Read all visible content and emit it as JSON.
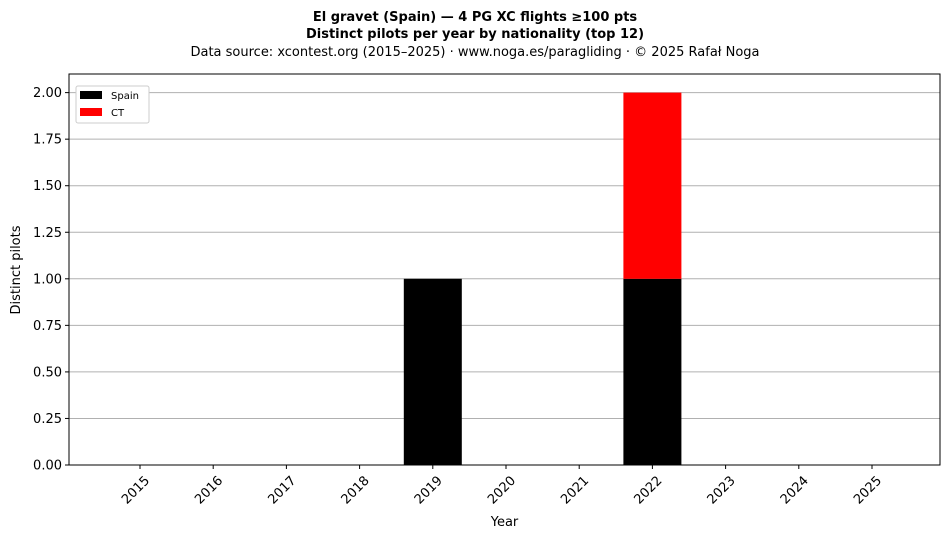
{
  "chart_data": {
    "type": "bar",
    "stacked": true,
    "title_line1": "El gravet (Spain)  —  4 PG XC flights ≥100 pts",
    "title_line2": "Distinct pilots per year by nationality (top 12)",
    "subtitle": "Data source: xcontest.org (2015–2025)  ·  www.noga.es/paragliding  ·  © 2025 Rafał Noga",
    "xlabel": "Year",
    "ylabel": "Distinct pilots",
    "ylim": [
      0,
      2.1
    ],
    "yticks": [
      "0.00",
      "0.25",
      "0.50",
      "0.75",
      "1.00",
      "1.25",
      "1.50",
      "1.75",
      "2.00"
    ],
    "ytick_values": [
      0,
      0.25,
      0.5,
      0.75,
      1.0,
      1.25,
      1.5,
      1.75,
      2.0
    ],
    "grid": "y",
    "legend_position": "top-left",
    "categories": [
      "2015",
      "2016",
      "2017",
      "2018",
      "2019",
      "2020",
      "2021",
      "2022",
      "2023",
      "2024",
      "2025"
    ],
    "series": [
      {
        "name": "Spain",
        "color": "#000000",
        "values": [
          0,
          0,
          0,
          0,
          1,
          0,
          0,
          1,
          0,
          0,
          0
        ]
      },
      {
        "name": "CT",
        "color": "#ff0000",
        "values": [
          0,
          0,
          0,
          0,
          0,
          0,
          0,
          1,
          0,
          0,
          0
        ]
      }
    ]
  }
}
